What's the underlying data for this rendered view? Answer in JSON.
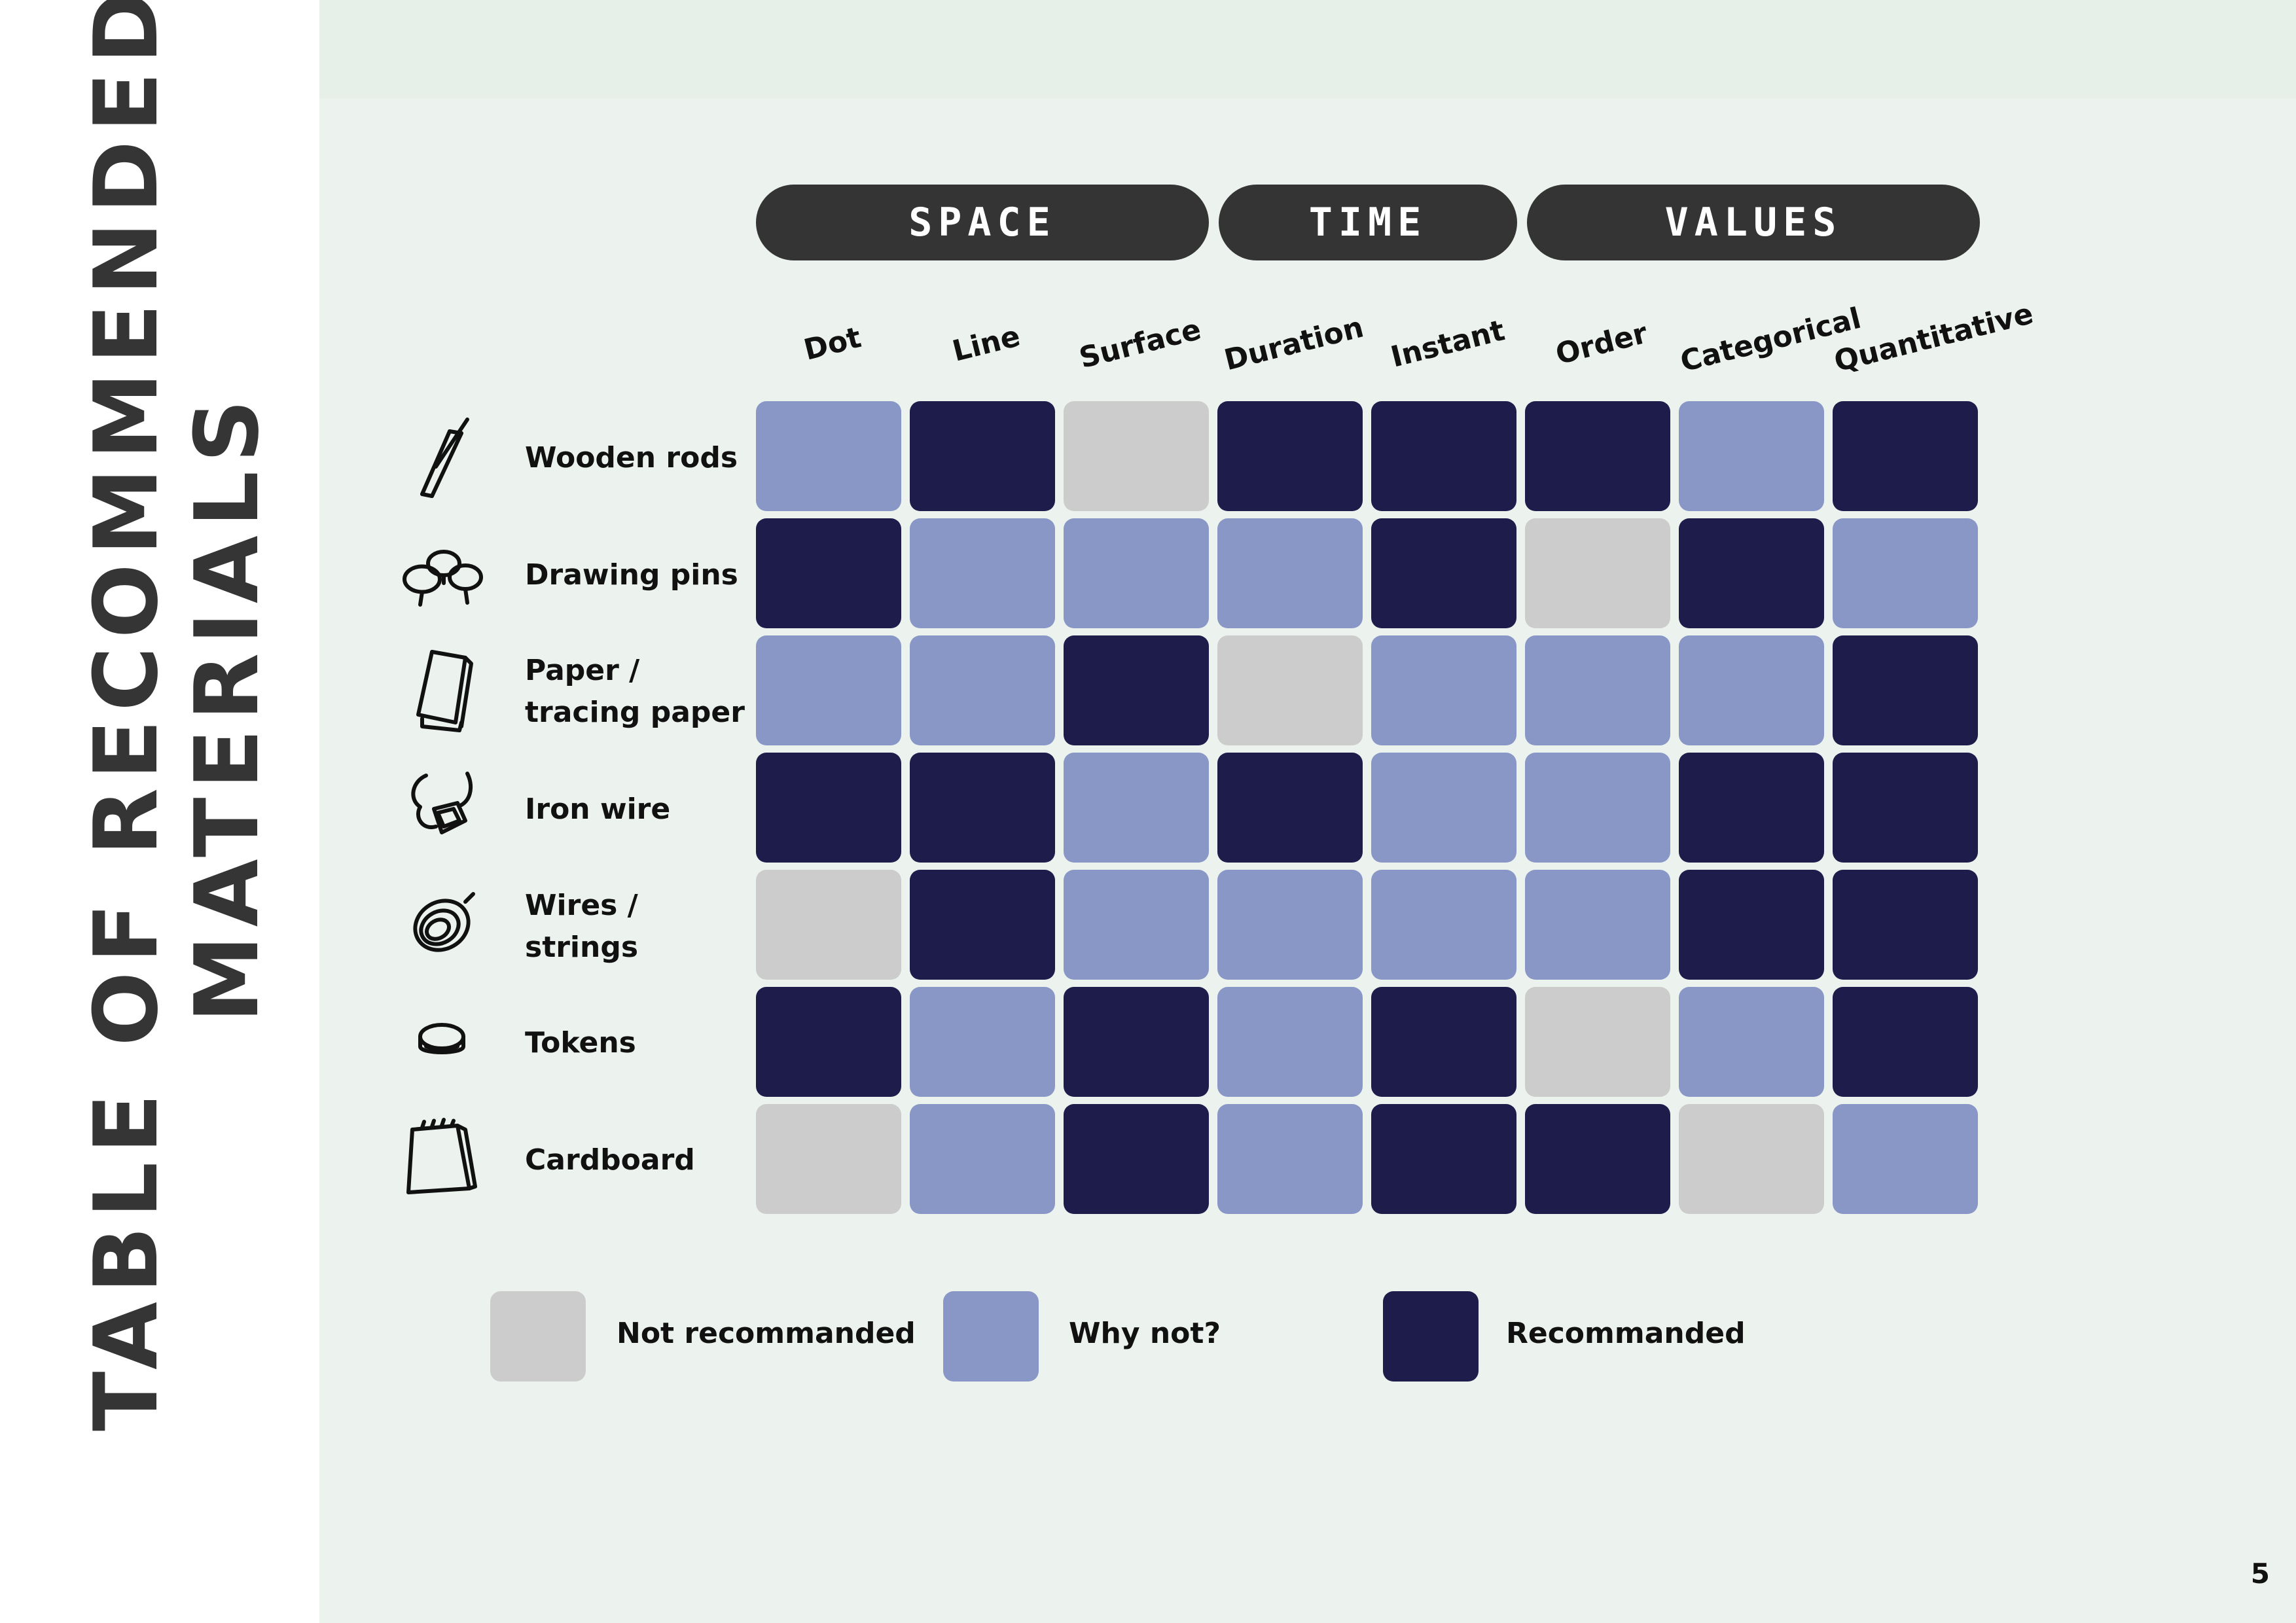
{
  "title": {
    "line1": "TABLE OF RECOMMENDED",
    "line2": "MATERIALS"
  },
  "header_groups": [
    {
      "label": "SPACE"
    },
    {
      "label": "TIME"
    },
    {
      "label": "VALUES"
    }
  ],
  "columns": [
    "Dot",
    "Line",
    "Surface",
    "Duration",
    "Instant",
    "Order",
    "Categorical",
    "Quantitative"
  ],
  "rows": [
    {
      "label": "Wooden rods",
      "icon": "wooden-rods-icon"
    },
    {
      "label": "Drawing pins",
      "icon": "drawing-pins-icon"
    },
    {
      "label": "Paper /\ntracing paper",
      "icon": "paper-icon"
    },
    {
      "label": "Iron wire",
      "icon": "iron-wire-icon"
    },
    {
      "label": "Wires / strings",
      "icon": "wires-strings-icon"
    },
    {
      "label": "Tokens",
      "icon": "tokens-icon"
    },
    {
      "label": "Cardboard",
      "icon": "cardboard-icon"
    }
  ],
  "levels": {
    "0": {
      "label": "Not recommanded",
      "color": "#cccccc"
    },
    "1": {
      "label": "Why not?",
      "color": "#8997c7"
    },
    "2": {
      "label": "Recommanded",
      "color": "#1e1c4a"
    }
  },
  "matrix": [
    [
      1,
      2,
      0,
      2,
      2,
      2,
      1,
      2
    ],
    [
      2,
      1,
      1,
      1,
      2,
      0,
      2,
      1
    ],
    [
      1,
      1,
      2,
      0,
      1,
      1,
      1,
      2
    ],
    [
      2,
      2,
      1,
      2,
      1,
      1,
      2,
      2
    ],
    [
      0,
      2,
      1,
      1,
      1,
      1,
      2,
      2
    ],
    [
      2,
      1,
      2,
      1,
      2,
      0,
      1,
      2
    ],
    [
      0,
      1,
      2,
      1,
      2,
      2,
      0,
      1
    ]
  ],
  "page_number": "5"
}
